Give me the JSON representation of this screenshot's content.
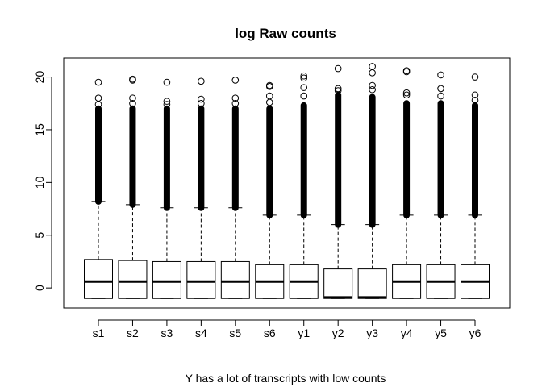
{
  "chart_data": {
    "type": "boxplot",
    "title": "log Raw counts",
    "xlabel": "Y has a lot of transcripts with low counts",
    "ylabel": "",
    "ylim": [
      -1.9,
      21.8
    ],
    "yticks": [
      0,
      5,
      10,
      15,
      20
    ],
    "grid": false,
    "legend": "none",
    "categories": [
      "s1",
      "s2",
      "s3",
      "s4",
      "s5",
      "s6",
      "y1",
      "y2",
      "y3",
      "y4",
      "y5",
      "y6"
    ],
    "boxes": [
      {
        "name": "s1",
        "min": -1.0,
        "q1": -1.0,
        "median": 0.6,
        "q3": 2.7,
        "whisker_high": 8.2,
        "outlier_start": 8.2,
        "outlier_dense_end": 17.0,
        "outliers": [
          17.4,
          18.0,
          19.5
        ]
      },
      {
        "name": "s2",
        "min": -1.0,
        "q1": -1.0,
        "median": 0.6,
        "q3": 2.6,
        "whisker_high": 7.9,
        "outlier_start": 7.9,
        "outlier_dense_end": 17.0,
        "outliers": [
          17.5,
          18.0,
          19.7,
          19.8
        ]
      },
      {
        "name": "s3",
        "min": -1.0,
        "q1": -1.0,
        "median": 0.6,
        "q3": 2.5,
        "whisker_high": 7.6,
        "outlier_start": 7.6,
        "outlier_dense_end": 17.0,
        "outliers": [
          17.4,
          17.7,
          19.5
        ]
      },
      {
        "name": "s4",
        "min": -1.0,
        "q1": -1.0,
        "median": 0.6,
        "q3": 2.5,
        "whisker_high": 7.6,
        "outlier_start": 7.6,
        "outlier_dense_end": 17.0,
        "outliers": [
          17.5,
          17.9,
          19.6
        ]
      },
      {
        "name": "s5",
        "min": -1.0,
        "q1": -1.0,
        "median": 0.6,
        "q3": 2.5,
        "whisker_high": 7.6,
        "outlier_start": 7.6,
        "outlier_dense_end": 17.0,
        "outliers": [
          17.5,
          18.0,
          19.7
        ]
      },
      {
        "name": "s6",
        "min": -1.0,
        "q1": -1.0,
        "median": 0.6,
        "q3": 2.2,
        "whisker_high": 6.9,
        "outlier_start": 6.9,
        "outlier_dense_end": 17.0,
        "outliers": [
          17.6,
          18.2,
          19.1,
          19.2
        ]
      },
      {
        "name": "y1",
        "min": -1.0,
        "q1": -1.0,
        "median": 0.6,
        "q3": 2.2,
        "whisker_high": 6.9,
        "outlier_start": 6.9,
        "outlier_dense_end": 17.3,
        "outliers": [
          18.2,
          19.0,
          19.9,
          20.1
        ]
      },
      {
        "name": "y2",
        "min": -1.0,
        "q1": -1.0,
        "median": -0.9,
        "q3": 1.8,
        "whisker_high": 6.0,
        "outlier_start": 6.0,
        "outlier_dense_end": 18.3,
        "outliers": [
          18.7,
          18.9,
          20.8
        ]
      },
      {
        "name": "y3",
        "min": -1.0,
        "q1": -1.0,
        "median": -0.9,
        "q3": 1.8,
        "whisker_high": 6.0,
        "outlier_start": 6.0,
        "outlier_dense_end": 18.1,
        "outliers": [
          18.8,
          19.2,
          20.4,
          21.0
        ]
      },
      {
        "name": "y4",
        "min": -1.0,
        "q1": -1.0,
        "median": 0.6,
        "q3": 2.2,
        "whisker_high": 6.9,
        "outlier_start": 6.9,
        "outlier_dense_end": 17.5,
        "outliers": [
          18.3,
          18.5,
          20.5,
          20.6
        ]
      },
      {
        "name": "y5",
        "min": -1.0,
        "q1": -1.0,
        "median": 0.6,
        "q3": 2.2,
        "whisker_high": 6.9,
        "outlier_start": 6.9,
        "outlier_dense_end": 17.5,
        "outliers": [
          18.2,
          18.9,
          20.2
        ]
      },
      {
        "name": "y6",
        "min": -1.0,
        "q1": -1.0,
        "median": 0.6,
        "q3": 2.2,
        "whisker_high": 6.9,
        "outlier_start": 6.9,
        "outlier_dense_end": 17.3,
        "outliers": [
          17.8,
          18.3,
          20.0
        ]
      }
    ]
  }
}
